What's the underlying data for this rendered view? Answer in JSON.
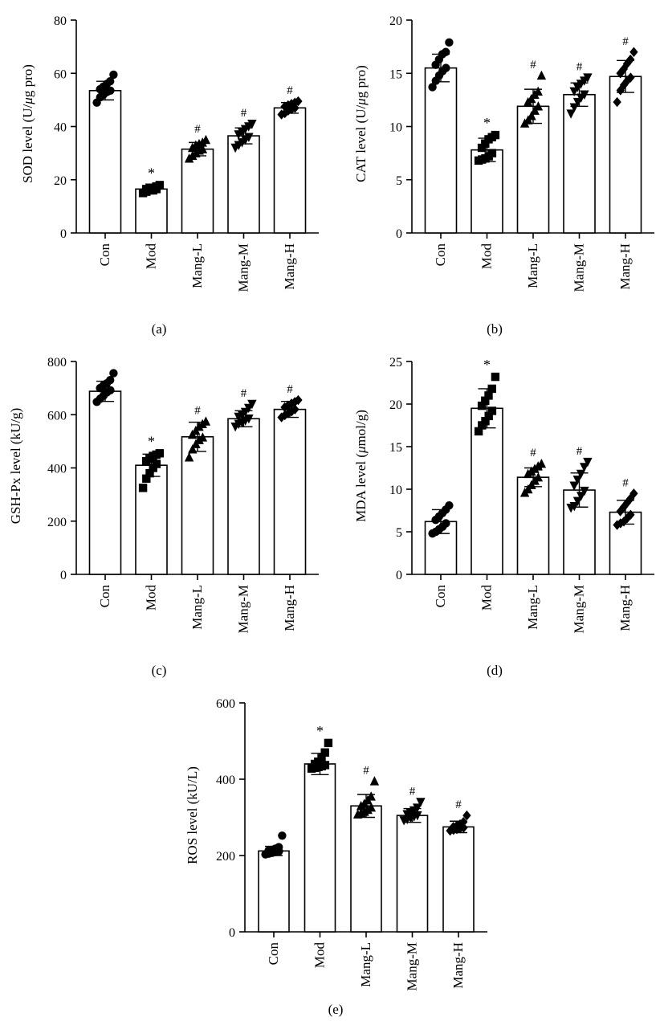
{
  "figure": {
    "category_labels": [
      "Con",
      "Mod",
      "Mang-L",
      "Mang-M",
      "Mang-H"
    ],
    "marker_shapes": [
      "circle",
      "square",
      "triangle-up",
      "triangle-down",
      "diamond"
    ],
    "colors": {
      "bar_fill": "#ffffff",
      "ink": "#000000"
    }
  },
  "chart_data": [
    {
      "panel": "(a)",
      "type": "bar",
      "ylabel_main": "SOD level (U/",
      "ylabel_mu": "μ",
      "ylabel_rest": "g pro)",
      "ylim": [
        0,
        80
      ],
      "yticks": [
        "0",
        "20",
        "40",
        "60",
        "80"
      ],
      "categories": [
        "Con",
        "Mod",
        "Mang-L",
        "Mang-M",
        "Mang-H"
      ],
      "values": [
        53.5,
        16.5,
        31.5,
        36.5,
        47
      ],
      "errors": [
        3.5,
        1.2,
        2.5,
        3,
        2
      ],
      "significance": [
        "",
        "*",
        "#",
        "#",
        "#"
      ],
      "points": [
        [
          49,
          51,
          52,
          53,
          53.5,
          54,
          55,
          56,
          57,
          59.5
        ],
        [
          15,
          15.5,
          16,
          16,
          16.5,
          16.5,
          17,
          17,
          17.5,
          18
        ],
        [
          28,
          29,
          30,
          31,
          31.5,
          32,
          33,
          33.5,
          34,
          35
        ],
        [
          32,
          33,
          34,
          35,
          36,
          37,
          38,
          39,
          40,
          41
        ],
        [
          44.5,
          45,
          46,
          46.5,
          47,
          47.5,
          48,
          48.5,
          49,
          49.5
        ]
      ],
      "grid": false
    },
    {
      "panel": "(b)",
      "type": "bar",
      "ylabel_main": "CAT level (U/",
      "ylabel_mu": "μ",
      "ylabel_rest": "g pro)",
      "ylim": [
        0,
        20
      ],
      "yticks": [
        "0",
        "5",
        "10",
        "15",
        "20"
      ],
      "categories": [
        "Con",
        "Mod",
        "Mang-L",
        "Mang-M",
        "Mang-H"
      ],
      "values": [
        15.5,
        7.8,
        11.9,
        13,
        14.7
      ],
      "errors": [
        1.3,
        1.1,
        1.6,
        1.1,
        1.5
      ],
      "significance": [
        "",
        "*",
        "#",
        "#",
        "#"
      ],
      "points": [
        [
          13.7,
          14.3,
          14.8,
          15.2,
          15.5,
          15.8,
          16.3,
          16.8,
          17,
          17.9
        ],
        [
          6.8,
          6.9,
          7,
          7.2,
          7.5,
          8,
          8.4,
          8.8,
          9,
          9.2
        ],
        [
          10.3,
          10.6,
          11,
          11.5,
          11.9,
          12.3,
          12.6,
          13,
          13.3,
          14.8
        ],
        [
          11.2,
          11.8,
          12.3,
          12.7,
          13,
          13.3,
          13.7,
          14,
          14.3,
          14.6
        ],
        [
          12.3,
          13.4,
          13.9,
          14.3,
          14.6,
          15,
          15.4,
          15.9,
          16.3,
          17
        ]
      ],
      "grid": false
    },
    {
      "panel": "(c)",
      "type": "bar",
      "ylabel_main": "GSH-Px level (kU/g)",
      "ylabel_mu": "",
      "ylabel_rest": "",
      "ylim": [
        0,
        800
      ],
      "yticks": [
        "0",
        "200",
        "400",
        "600",
        "800"
      ],
      "categories": [
        "Con",
        "Mod",
        "Mang-L",
        "Mang-M",
        "Mang-H"
      ],
      "values": [
        688,
        410,
        517,
        585,
        620
      ],
      "errors": [
        38,
        42,
        55,
        30,
        30
      ],
      "significance": [
        "",
        "*",
        "#",
        "#",
        "#"
      ],
      "points": [
        [
          648,
          660,
          672,
          684,
          692,
          700,
          710,
          718,
          730,
          756
        ],
        [
          325,
          360,
          380,
          400,
          415,
          425,
          435,
          445,
          450,
          455
        ],
        [
          440,
          470,
          490,
          505,
          515,
          525,
          540,
          555,
          565,
          575
        ],
        [
          555,
          565,
          570,
          578,
          585,
          592,
          600,
          610,
          625,
          640
        ],
        [
          590,
          598,
          605,
          612,
          620,
          628,
          635,
          642,
          648,
          655
        ]
      ],
      "grid": false
    },
    {
      "panel": "(d)",
      "type": "bar",
      "ylabel_main": "MDA level (",
      "ylabel_mu": "μ",
      "ylabel_rest": "mol/g)",
      "ylim": [
        0,
        25
      ],
      "yticks": [
        "0",
        "5",
        "10",
        "15",
        "20",
        "25"
      ],
      "categories": [
        "Con",
        "Mod",
        "Mang-L",
        "Mang-M",
        "Mang-H"
      ],
      "values": [
        6.2,
        19.5,
        11.4,
        9.9,
        7.3
      ],
      "errors": [
        1.4,
        2.3,
        1.1,
        2,
        1.4
      ],
      "significance": [
        "",
        "*",
        "#",
        "#",
        "#"
      ],
      "points": [
        [
          4.8,
          5,
          5.3,
          5.6,
          6,
          6.4,
          6.8,
          7.2,
          7.6,
          8.1
        ],
        [
          16.8,
          17.5,
          18,
          18.6,
          19.2,
          19.8,
          20.4,
          21,
          21.8,
          23.2
        ],
        [
          9.6,
          10,
          10.5,
          11,
          11.4,
          11.8,
          12.1,
          12.4,
          12.7,
          13
        ],
        [
          7.8,
          8,
          8.6,
          9.2,
          9.8,
          10.4,
          11.1,
          11.8,
          12.6,
          13.2
        ],
        [
          5.8,
          6,
          6.2,
          6.6,
          7,
          7.4,
          7.9,
          8.4,
          8.9,
          9.5
        ]
      ],
      "grid": false
    },
    {
      "panel": "(e)",
      "type": "bar",
      "ylabel_main": "ROS level (kU/L)",
      "ylabel_mu": "",
      "ylabel_rest": "",
      "ylim": [
        0,
        600
      ],
      "yticks": [
        "0",
        "200",
        "400",
        "600"
      ],
      "categories": [
        "Con",
        "Mod",
        "Mang-L",
        "Mang-M",
        "Mang-H"
      ],
      "values": [
        212,
        440,
        330,
        305,
        275
      ],
      "errors": [
        12,
        28,
        30,
        18,
        15
      ],
      "significance": [
        "",
        "*",
        "#",
        "#",
        "#"
      ],
      "points": [
        [
          203,
          205,
          207,
          209,
          211,
          213,
          215,
          218,
          222,
          252
        ],
        [
          428,
          430,
          432,
          434,
          437,
          440,
          446,
          455,
          470,
          495
        ],
        [
          308,
          312,
          315,
          320,
          326,
          330,
          336,
          345,
          355,
          395
        ],
        [
          292,
          295,
          298,
          302,
          305,
          308,
          312,
          318,
          325,
          340
        ],
        [
          265,
          267,
          269,
          271,
          273,
          275,
          278,
          282,
          288,
          305
        ]
      ],
      "grid": false
    }
  ]
}
